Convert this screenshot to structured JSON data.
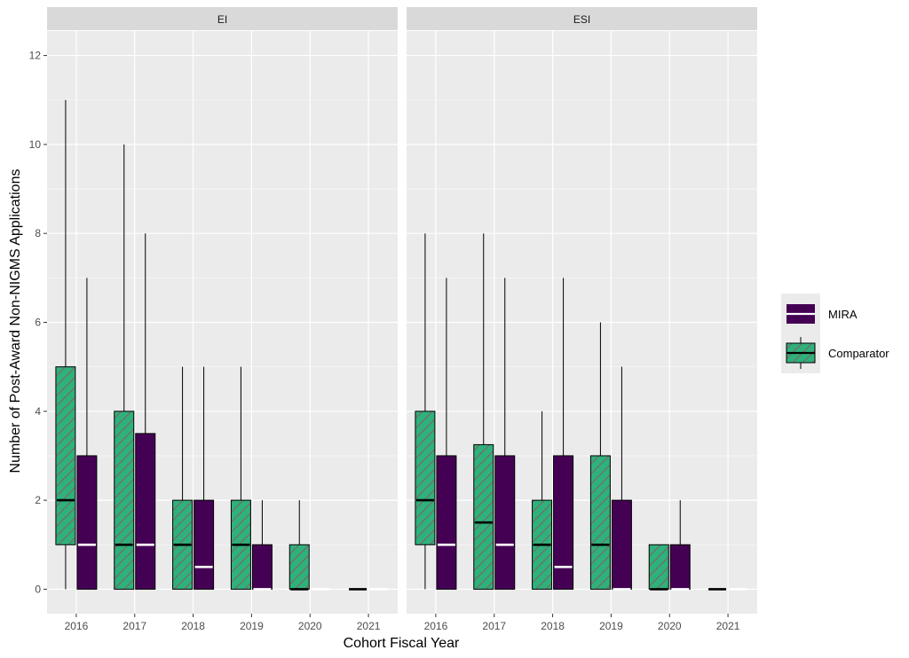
{
  "chart_data": {
    "type": "boxplot",
    "xlabel": "Cohort Fiscal Year",
    "ylabel": "Number of Post-Award Non-NIGMS Applications",
    "ylim": [
      -0.55,
      12.55
    ],
    "yticks": [
      0,
      2,
      4,
      6,
      8,
      10,
      12
    ],
    "grid": true,
    "categories": [
      "2016",
      "2017",
      "2018",
      "2019",
      "2020",
      "2021"
    ],
    "legend": {
      "position": "right",
      "entries": [
        {
          "name": "MIRA",
          "color": "#440154",
          "median_color": "#ffffff",
          "hatched": false
        },
        {
          "name": "Comparator",
          "color": "#2db27d",
          "median_color": "#000000",
          "hatched": true
        }
      ]
    },
    "panels": [
      {
        "label": "EI",
        "groups": [
          {
            "year": "2016",
            "series": "Comparator",
            "min": 0,
            "q1": 1,
            "median": 2,
            "q3": 5,
            "max": 11
          },
          {
            "year": "2016",
            "series": "MIRA",
            "min": 0,
            "q1": 0,
            "median": 1,
            "q3": 3,
            "max": 7
          },
          {
            "year": "2017",
            "series": "Comparator",
            "min": 0,
            "q1": 0,
            "median": 1,
            "q3": 4,
            "max": 10
          },
          {
            "year": "2017",
            "series": "MIRA",
            "min": 0,
            "q1": 0,
            "median": 1,
            "q3": 3.5,
            "max": 8
          },
          {
            "year": "2018",
            "series": "Comparator",
            "min": 0,
            "q1": 0,
            "median": 1,
            "q3": 2,
            "max": 5
          },
          {
            "year": "2018",
            "series": "MIRA",
            "min": 0,
            "q1": 0,
            "median": 0.5,
            "q3": 2,
            "max": 5
          },
          {
            "year": "2019",
            "series": "Comparator",
            "min": 0,
            "q1": 0,
            "median": 1,
            "q3": 2,
            "max": 5
          },
          {
            "year": "2019",
            "series": "MIRA",
            "min": 0,
            "q1": 0,
            "median": 0,
            "q3": 1,
            "max": 2
          },
          {
            "year": "2020",
            "series": "Comparator",
            "min": 0,
            "q1": 0,
            "median": 0,
            "q3": 1,
            "max": 2
          },
          {
            "year": "2020",
            "series": "MIRA",
            "min": 0,
            "q1": 0,
            "median": 0,
            "q3": 0,
            "max": 0
          },
          {
            "year": "2021",
            "series": "Comparator",
            "min": 0,
            "q1": 0,
            "median": 0,
            "q3": 0,
            "max": 0
          },
          {
            "year": "2021",
            "series": "MIRA",
            "min": 0,
            "q1": 0,
            "median": 0,
            "q3": 0,
            "max": 0
          }
        ]
      },
      {
        "label": "ESI",
        "groups": [
          {
            "year": "2016",
            "series": "Comparator",
            "min": 0,
            "q1": 1,
            "median": 2,
            "q3": 4,
            "max": 8
          },
          {
            "year": "2016",
            "series": "MIRA",
            "min": 0,
            "q1": 0,
            "median": 1,
            "q3": 3,
            "max": 7
          },
          {
            "year": "2017",
            "series": "Comparator",
            "min": 0,
            "q1": 0,
            "median": 1.5,
            "q3": 3.25,
            "max": 8
          },
          {
            "year": "2017",
            "series": "MIRA",
            "min": 0,
            "q1": 0,
            "median": 1,
            "q3": 3,
            "max": 7
          },
          {
            "year": "2018",
            "series": "Comparator",
            "min": 0,
            "q1": 0,
            "median": 1,
            "q3": 2,
            "max": 4
          },
          {
            "year": "2018",
            "series": "MIRA",
            "min": 0,
            "q1": 0,
            "median": 0.5,
            "q3": 3,
            "max": 7
          },
          {
            "year": "2019",
            "series": "Comparator",
            "min": 0,
            "q1": 0,
            "median": 1,
            "q3": 3,
            "max": 6
          },
          {
            "year": "2019",
            "series": "MIRA",
            "min": 0,
            "q1": 0,
            "median": 0,
            "q3": 2,
            "max": 5
          },
          {
            "year": "2020",
            "series": "Comparator",
            "min": 0,
            "q1": 0,
            "median": 0,
            "q3": 1,
            "max": 1
          },
          {
            "year": "2020",
            "series": "MIRA",
            "min": 0,
            "q1": 0,
            "median": 0,
            "q3": 1,
            "max": 2
          },
          {
            "year": "2021",
            "series": "Comparator",
            "min": 0,
            "q1": 0,
            "median": 0,
            "q3": 0,
            "max": 0
          },
          {
            "year": "2021",
            "series": "MIRA",
            "min": 0,
            "q1": 0,
            "median": 0,
            "q3": 0,
            "max": 0
          }
        ]
      }
    ]
  }
}
